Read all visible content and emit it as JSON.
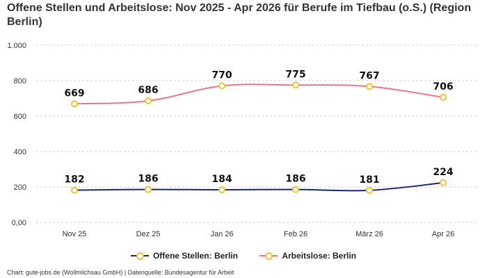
{
  "title": "Offene Stellen und Arbeitslose: Nov 2025 - Apr 2026 für Berufe im Tiefbau (o.S.) (Region Berlin)",
  "credits": "Chart: gute-jobs.de (Wollmilchsau GmbH) | Datenquelle: Bundesagentur für Arbeit",
  "colors": {
    "offene": "#1a237e",
    "arbeitslose": "#f0738a",
    "marker": "#f2c12e",
    "grid": "#cccccc"
  },
  "chart_data": {
    "type": "line",
    "categories": [
      "Nov 25",
      "Dez 25",
      "Jan 26",
      "Feb 26",
      "März 26",
      "Apr 26"
    ],
    "ylim": [
      0,
      1000
    ],
    "yticks": [
      0,
      200,
      400,
      600,
      800,
      1000
    ],
    "ytick_labels": [
      "0,00",
      "200",
      "400",
      "600",
      "800",
      "1.000"
    ],
    "grid": true,
    "legend_position": "bottom",
    "series": [
      {
        "name": "Offene Stellen: Berlin",
        "color": "#1a237e",
        "values": [
          182,
          186,
          184,
          186,
          181,
          224
        ]
      },
      {
        "name": "Arbeitslose: Berlin",
        "color": "#f0738a",
        "values": [
          669,
          686,
          770,
          775,
          767,
          706
        ]
      }
    ]
  }
}
